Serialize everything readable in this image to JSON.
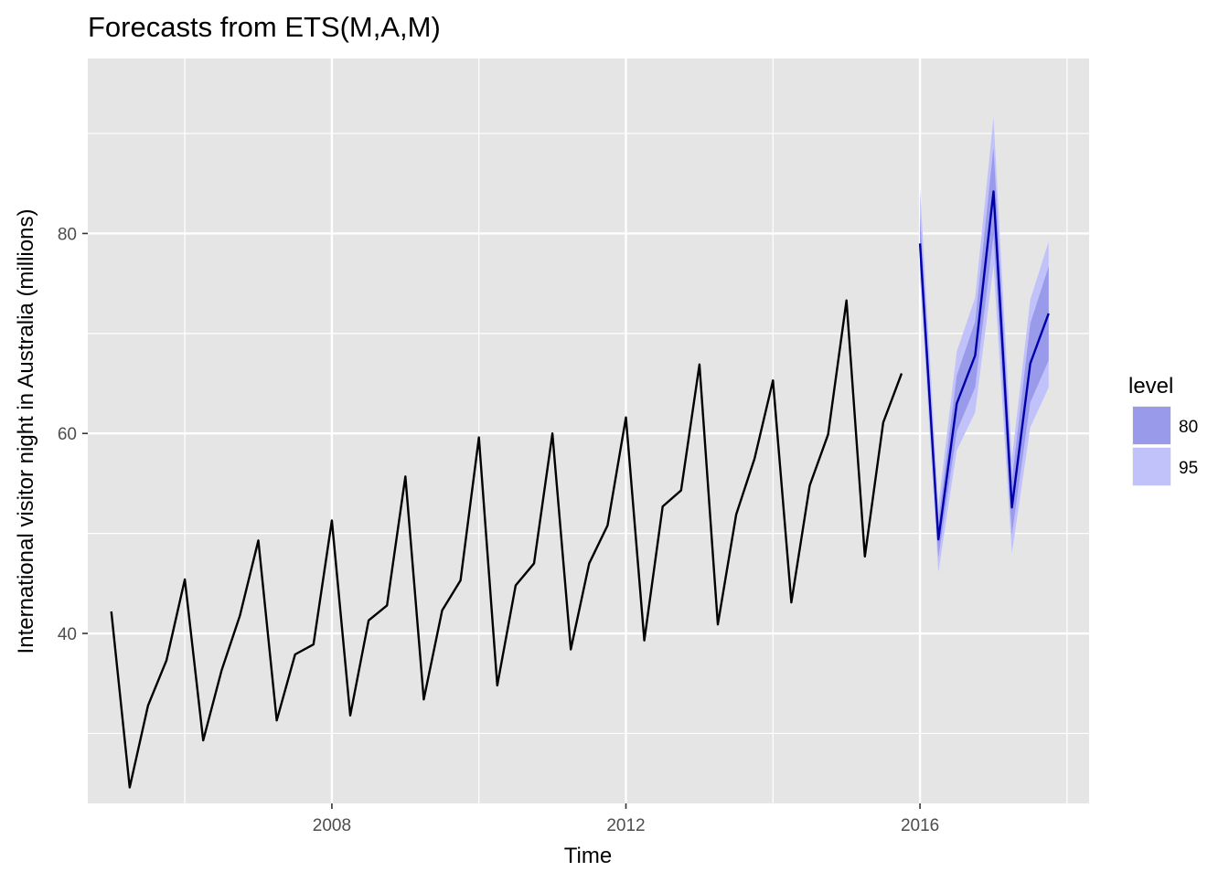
{
  "chart_data": {
    "type": "line",
    "title": "Forecasts from ETS(M,A,M)",
    "xlabel": "Time",
    "ylabel": "International visitor night in Australia (millions)",
    "xlim": [
      2004.68,
      2018.3
    ],
    "ylim": [
      23.0,
      97.5
    ],
    "x_ticks": [
      2008,
      2012,
      2016
    ],
    "x_minor_ticks": [
      2006,
      2010,
      2014,
      2018
    ],
    "y_ticks": [
      40,
      60,
      80
    ],
    "y_minor_ticks": [
      30,
      50,
      70,
      90
    ],
    "grid": true,
    "legend": {
      "title": "level",
      "position": "right",
      "entries": [
        {
          "label": "80",
          "color": "#9a9aeb"
        },
        {
          "label": "95",
          "color": "#c2c2fb"
        }
      ]
    },
    "colors": {
      "panel_bg": "#e5e5e5",
      "grid": "#ffffff",
      "history_line": "#000000",
      "forecast_line": "#0000aa",
      "band80": "#9a9aeb",
      "band95": "#c2c2fb"
    },
    "history": {
      "x": [
        2005.0,
        2005.25,
        2005.5,
        2005.75,
        2006.0,
        2006.25,
        2006.5,
        2006.75,
        2007.0,
        2007.25,
        2007.5,
        2007.75,
        2008.0,
        2008.25,
        2008.5,
        2008.75,
        2009.0,
        2009.25,
        2009.5,
        2009.75,
        2010.0,
        2010.25,
        2010.5,
        2010.75,
        2011.0,
        2011.25,
        2011.5,
        2011.75,
        2012.0,
        2012.25,
        2012.5,
        2012.75,
        2013.0,
        2013.25,
        2013.5,
        2013.75,
        2014.0,
        2014.25,
        2014.5,
        2014.75,
        2015.0,
        2015.25,
        2015.5,
        2015.75
      ],
      "y": [
        42.2,
        24.6,
        32.8,
        37.3,
        45.4,
        29.3,
        36.3,
        41.8,
        49.3,
        31.3,
        37.9,
        38.9,
        51.3,
        31.8,
        41.3,
        42.8,
        55.7,
        33.4,
        42.3,
        45.3,
        59.6,
        34.8,
        44.8,
        47.0,
        60.0,
        38.4,
        47.0,
        50.8,
        61.6,
        39.3,
        52.7,
        54.3,
        66.9,
        40.9,
        51.9,
        57.5,
        65.3,
        43.1,
        54.8,
        59.9,
        73.3,
        47.7,
        61.1,
        66.0
      ]
    },
    "forecast": {
      "x": [
        2016.0,
        2016.25,
        2016.5,
        2016.75,
        2017.0,
        2017.25,
        2017.5,
        2017.75
      ],
      "mean": [
        79.0,
        49.4,
        63.0,
        67.8,
        84.2,
        52.6,
        67.0,
        72.0
      ],
      "lo80": [
        76.8,
        47.6,
        60.2,
        64.6,
        79.8,
        49.9,
        63.1,
        67.3
      ],
      "hi80": [
        81.7,
        51.2,
        65.8,
        71.2,
        88.6,
        55.3,
        71.0,
        76.7
      ],
      "lo95": [
        75.6,
        46.1,
        58.3,
        62.1,
        76.8,
        48.0,
        60.6,
        64.6
      ],
      "hi95": [
        84.5,
        52.8,
        68.2,
        73.6,
        91.6,
        57.5,
        73.4,
        79.2
      ]
    }
  }
}
